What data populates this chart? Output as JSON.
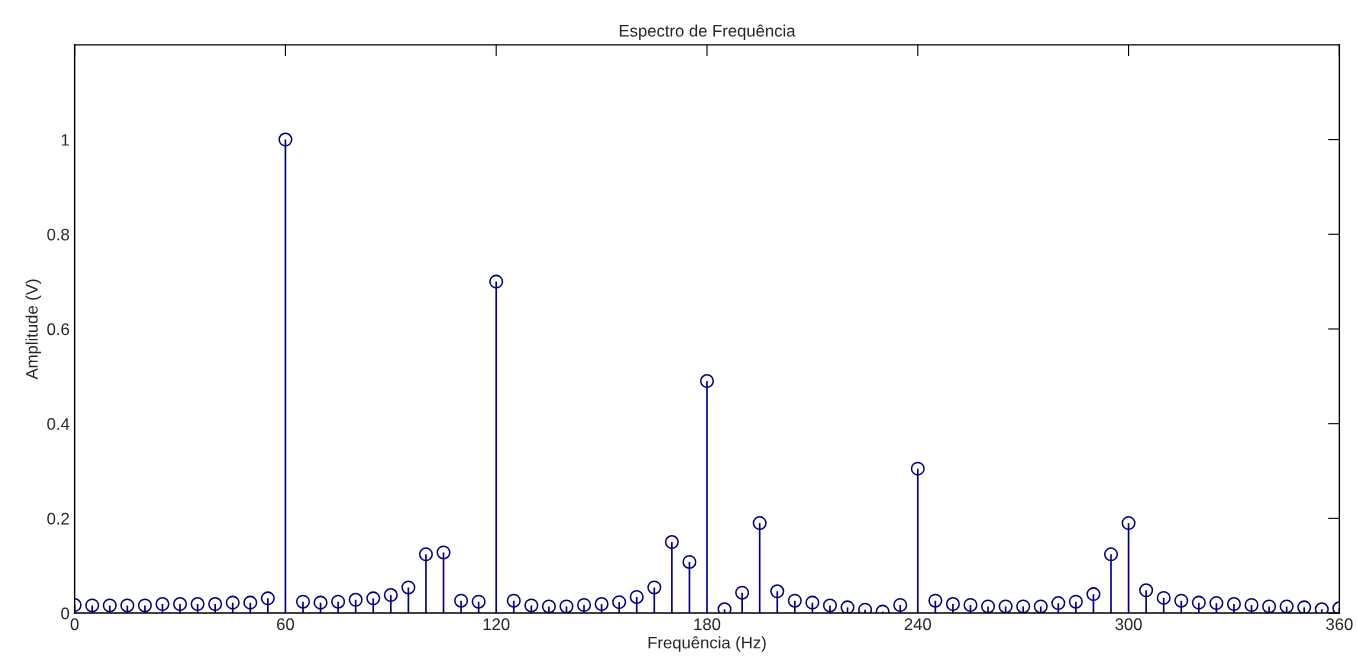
{
  "chart_data": {
    "type": "lollipop",
    "title": "Espectro de Frequência",
    "xlabel": "Frequência (Hz)",
    "ylabel": "Amplitude (V)",
    "x": [
      0,
      5,
      10,
      15,
      20,
      25,
      30,
      35,
      40,
      45,
      50,
      55,
      60,
      65,
      70,
      75,
      80,
      85,
      90,
      95,
      100,
      105,
      110,
      115,
      120,
      125,
      130,
      135,
      140,
      145,
      150,
      155,
      160,
      165,
      170,
      175,
      180,
      185,
      190,
      195,
      200,
      205,
      210,
      215,
      220,
      225,
      230,
      235,
      240,
      245,
      250,
      255,
      260,
      265,
      270,
      275,
      280,
      285,
      290,
      295,
      300,
      305,
      310,
      315,
      320,
      325,
      330,
      335,
      340,
      345,
      350,
      355,
      360
    ],
    "series": [
      {
        "color": "#000080",
        "values": [
          0.017,
          0.016,
          0.016,
          0.016,
          0.016,
          0.019,
          0.019,
          0.019,
          0.019,
          0.022,
          0.022,
          0.031,
          1.0,
          0.024,
          0.022,
          0.024,
          0.028,
          0.031,
          0.038,
          0.054,
          0.124,
          0.128,
          0.026,
          0.024,
          0.7,
          0.026,
          0.016,
          0.014,
          0.014,
          0.017,
          0.019,
          0.023,
          0.034,
          0.054,
          0.15,
          0.108,
          0.49,
          0.008,
          0.043,
          0.19,
          0.046,
          0.026,
          0.022,
          0.016,
          0.012,
          0.007,
          0.003,
          0.017,
          0.305,
          0.026,
          0.019,
          0.017,
          0.014,
          0.014,
          0.014,
          0.014,
          0.021,
          0.024,
          0.04,
          0.124,
          0.19,
          0.048,
          0.032,
          0.026,
          0.022,
          0.021,
          0.019,
          0.017,
          0.014,
          0.014,
          0.012,
          0.008,
          0.01
        ]
      }
    ],
    "xlim": [
      0,
      360
    ],
    "xticks": [
      0,
      60,
      120,
      180,
      240,
      300,
      360
    ],
    "ylim": [
      0,
      1.2
    ],
    "yticks": [
      0,
      0.2,
      0.4,
      0.6,
      0.8,
      1
    ],
    "marker": "circle",
    "grid": false,
    "legend": false
  }
}
